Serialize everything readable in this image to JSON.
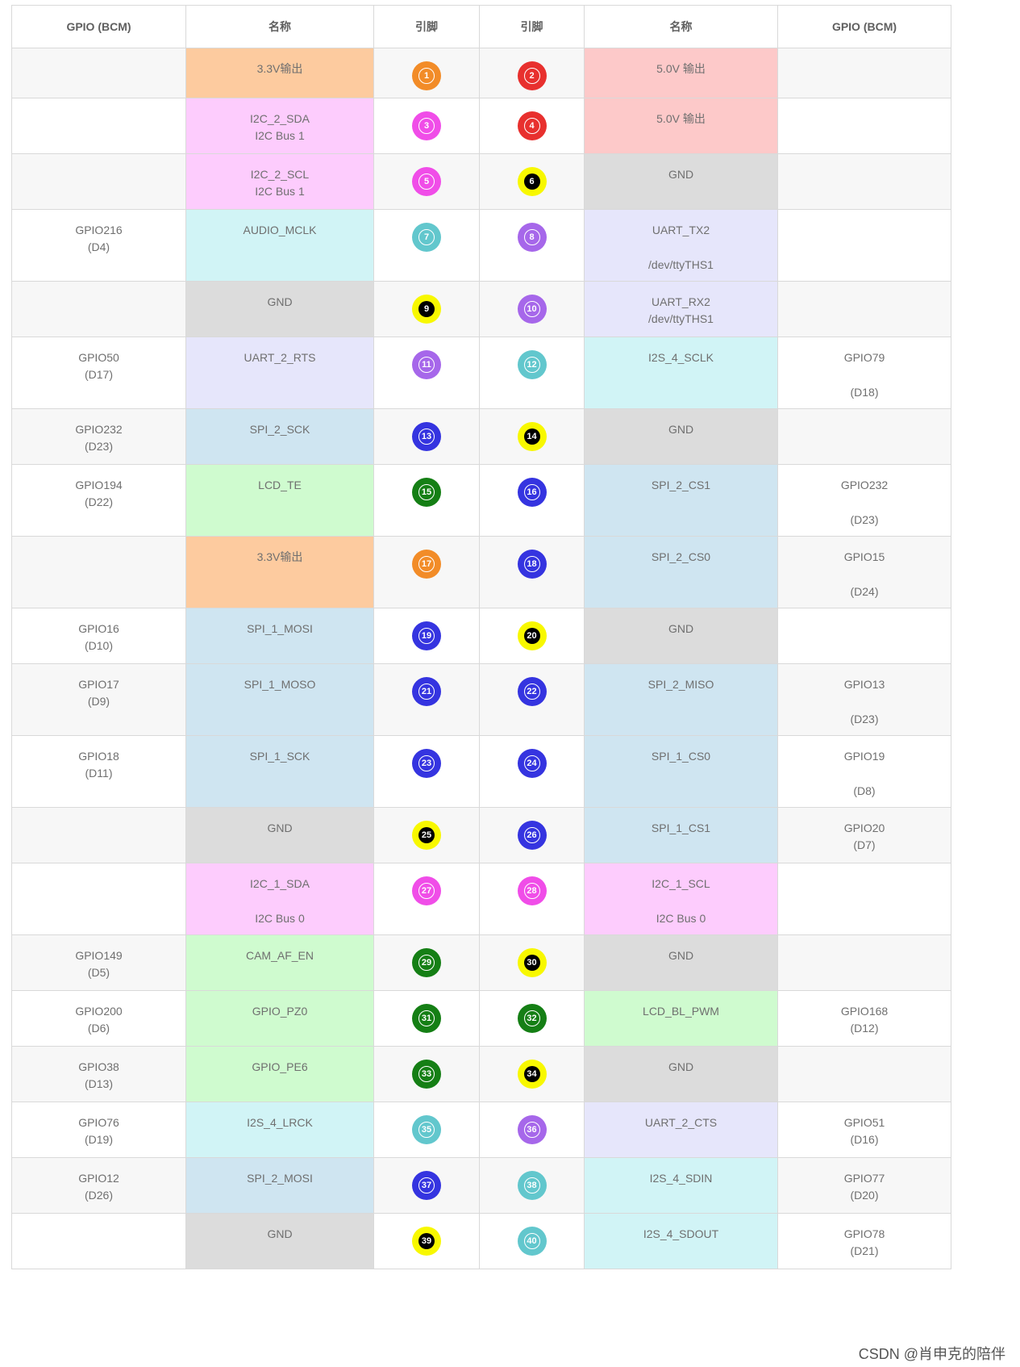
{
  "headers": [
    "GPIO (BCM)",
    "名称",
    "引脚",
    "引脚",
    "名称",
    "GPIO (BCM)"
  ],
  "colors": {
    "power33": "#fdcb9f",
    "power50": "#fdc9c9",
    "gnd": "#dcdcdc",
    "i2c": "#fdccfd",
    "i2s": "#d1f4f6",
    "uart": "#e6e6fb",
    "spi": "#cfe5f1",
    "gpio": "#cffbcf"
  },
  "pin_colors": {
    "orange": "#f28c28",
    "red": "#e8302e",
    "magenta": "#f04de8",
    "teal": "#62c7cd",
    "purple": "#a667ea",
    "blue": "#3534e0",
    "green": "#157f15",
    "yellow": "#f8f800"
  },
  "rows": [
    {
      "left_gpio": [],
      "left_name": [
        "3.3V输出"
      ],
      "left_color": "power33",
      "left_pin": "1",
      "left_pin_color": "orange",
      "right_pin": "2",
      "right_pin_color": "red",
      "right_name": [
        "5.0V 输出"
      ],
      "right_color": "power50",
      "right_gpio": []
    },
    {
      "left_gpio": [],
      "left_name": [
        "I2C_2_SDA",
        "I2C Bus 1"
      ],
      "left_color": "i2c",
      "left_pin": "3",
      "left_pin_color": "magenta",
      "right_pin": "4",
      "right_pin_color": "red",
      "right_name": [
        "5.0V 输出"
      ],
      "right_color": "power50",
      "right_gpio": []
    },
    {
      "left_gpio": [],
      "left_name": [
        "I2C_2_SCL",
        "I2C Bus 1"
      ],
      "left_color": "i2c",
      "left_pin": "5",
      "left_pin_color": "magenta",
      "right_pin": "6",
      "right_pin_color": "yellow",
      "right_name": [
        "GND"
      ],
      "right_color": "gnd",
      "right_gpio": []
    },
    {
      "left_gpio": [
        "GPIO216",
        "(D4)"
      ],
      "left_name": [
        "AUDIO_MCLK"
      ],
      "left_color": "i2s",
      "left_pin": "7",
      "left_pin_color": "teal",
      "right_pin": "8",
      "right_pin_color": "purple",
      "right_name": [
        "UART_TX2",
        "",
        "/dev/ttyTHS1"
      ],
      "right_color": "uart",
      "right_gpio": []
    },
    {
      "left_gpio": [],
      "left_name": [
        "GND"
      ],
      "left_color": "gnd",
      "left_pin": "9",
      "left_pin_color": "yellow",
      "right_pin": "10",
      "right_pin_color": "purple",
      "right_name": [
        "UART_RX2",
        "/dev/ttyTHS1"
      ],
      "right_color": "uart",
      "right_gpio": []
    },
    {
      "left_gpio": [
        "GPIO50",
        "(D17)"
      ],
      "left_name": [
        "UART_2_RTS"
      ],
      "left_color": "uart",
      "left_pin": "11",
      "left_pin_color": "purple",
      "right_pin": "12",
      "right_pin_color": "teal",
      "right_name": [
        "I2S_4_SCLK"
      ],
      "right_color": "i2s",
      "right_gpio": [
        "GPIO79",
        "",
        "(D18)"
      ]
    },
    {
      "left_gpio": [
        "GPIO232",
        "(D23)"
      ],
      "left_name": [
        "SPI_2_SCK"
      ],
      "left_color": "spi",
      "left_pin": "13",
      "left_pin_color": "blue",
      "right_pin": "14",
      "right_pin_color": "yellow",
      "right_name": [
        "GND"
      ],
      "right_color": "gnd",
      "right_gpio": []
    },
    {
      "left_gpio": [
        "GPIO194",
        "(D22)"
      ],
      "left_name": [
        "LCD_TE"
      ],
      "left_color": "gpio",
      "left_pin": "15",
      "left_pin_color": "green",
      "right_pin": "16",
      "right_pin_color": "blue",
      "right_name": [
        "SPI_2_CS1"
      ],
      "right_color": "spi",
      "right_gpio": [
        "GPIO232",
        "",
        "(D23)"
      ]
    },
    {
      "left_gpio": [],
      "left_name": [
        "3.3V输出"
      ],
      "left_color": "power33",
      "left_pin": "17",
      "left_pin_color": "orange",
      "right_pin": "18",
      "right_pin_color": "blue",
      "right_name": [
        "SPI_2_CS0"
      ],
      "right_color": "spi",
      "right_gpio": [
        "GPIO15",
        "",
        "(D24)"
      ]
    },
    {
      "left_gpio": [
        "GPIO16",
        "(D10)"
      ],
      "left_name": [
        "SPI_1_MOSI"
      ],
      "left_color": "spi",
      "left_pin": "19",
      "left_pin_color": "blue",
      "right_pin": "20",
      "right_pin_color": "yellow",
      "right_name": [
        "GND"
      ],
      "right_color": "gnd",
      "right_gpio": []
    },
    {
      "left_gpio": [
        "GPIO17",
        "(D9)"
      ],
      "left_name": [
        "SPI_1_MOSO"
      ],
      "left_color": "spi",
      "left_pin": "21",
      "left_pin_color": "blue",
      "right_pin": "22",
      "right_pin_color": "blue",
      "right_name": [
        "SPI_2_MISO"
      ],
      "right_color": "spi",
      "right_gpio": [
        "GPIO13",
        "",
        "(D23)"
      ]
    },
    {
      "left_gpio": [
        "GPIO18",
        "(D11)"
      ],
      "left_name": [
        "SPI_1_SCK"
      ],
      "left_color": "spi",
      "left_pin": "23",
      "left_pin_color": "blue",
      "right_pin": "24",
      "right_pin_color": "blue",
      "right_name": [
        "SPI_1_CS0"
      ],
      "right_color": "spi",
      "right_gpio": [
        "GPIO19",
        "",
        "(D8)"
      ]
    },
    {
      "left_gpio": [],
      "left_name": [
        "GND"
      ],
      "left_color": "gnd",
      "left_pin": "25",
      "left_pin_color": "yellow",
      "right_pin": "26",
      "right_pin_color": "blue",
      "right_name": [
        "SPI_1_CS1"
      ],
      "right_color": "spi",
      "right_gpio": [
        "GPIO20",
        "(D7)"
      ]
    },
    {
      "left_gpio": [],
      "left_name": [
        "I2C_1_SDA",
        "",
        "I2C Bus 0"
      ],
      "left_color": "i2c",
      "left_pin": "27",
      "left_pin_color": "magenta",
      "right_pin": "28",
      "right_pin_color": "magenta",
      "right_name": [
        "I2C_1_SCL",
        "",
        "I2C Bus 0"
      ],
      "right_color": "i2c",
      "right_gpio": []
    },
    {
      "left_gpio": [
        "GPIO149",
        "(D5)"
      ],
      "left_name": [
        "CAM_AF_EN"
      ],
      "left_color": "gpio",
      "left_pin": "29",
      "left_pin_color": "green",
      "right_pin": "30",
      "right_pin_color": "yellow",
      "right_name": [
        "GND"
      ],
      "right_color": "gnd",
      "right_gpio": []
    },
    {
      "left_gpio": [
        "GPIO200",
        "(D6)"
      ],
      "left_name": [
        "GPIO_PZ0"
      ],
      "left_color": "gpio",
      "left_pin": "31",
      "left_pin_color": "green",
      "right_pin": "32",
      "right_pin_color": "green",
      "right_name": [
        "LCD_BL_PWM"
      ],
      "right_color": "gpio",
      "right_gpio": [
        "GPIO168",
        "(D12)"
      ]
    },
    {
      "left_gpio": [
        "GPIO38",
        "(D13)"
      ],
      "left_name": [
        "GPIO_PE6"
      ],
      "left_color": "gpio",
      "left_pin": "33",
      "left_pin_color": "green",
      "right_pin": "34",
      "right_pin_color": "yellow",
      "right_name": [
        "GND"
      ],
      "right_color": "gnd",
      "right_gpio": []
    },
    {
      "left_gpio": [
        "GPIO76",
        "(D19)"
      ],
      "left_name": [
        "I2S_4_LRCK"
      ],
      "left_color": "i2s",
      "left_pin": "35",
      "left_pin_color": "teal",
      "right_pin": "36",
      "right_pin_color": "purple",
      "right_name": [
        "UART_2_CTS"
      ],
      "right_color": "uart",
      "right_gpio": [
        "GPIO51",
        "(D16)"
      ]
    },
    {
      "left_gpio": [
        "GPIO12",
        "(D26)"
      ],
      "left_name": [
        "SPI_2_MOSI"
      ],
      "left_color": "spi",
      "left_pin": "37",
      "left_pin_color": "blue",
      "right_pin": "38",
      "right_pin_color": "teal",
      "right_name": [
        "I2S_4_SDIN"
      ],
      "right_color": "i2s",
      "right_gpio": [
        "GPIO77",
        "(D20)"
      ]
    },
    {
      "left_gpio": [],
      "left_name": [
        "GND"
      ],
      "left_color": "gnd",
      "left_pin": "39",
      "left_pin_color": "yellow",
      "right_pin": "40",
      "right_pin_color": "teal",
      "right_name": [
        "I2S_4_SDOUT"
      ],
      "right_color": "i2s",
      "right_gpio": [
        "GPIO78",
        "(D21)"
      ]
    }
  ],
  "watermark": "CSDN @肖申克的陪伴"
}
